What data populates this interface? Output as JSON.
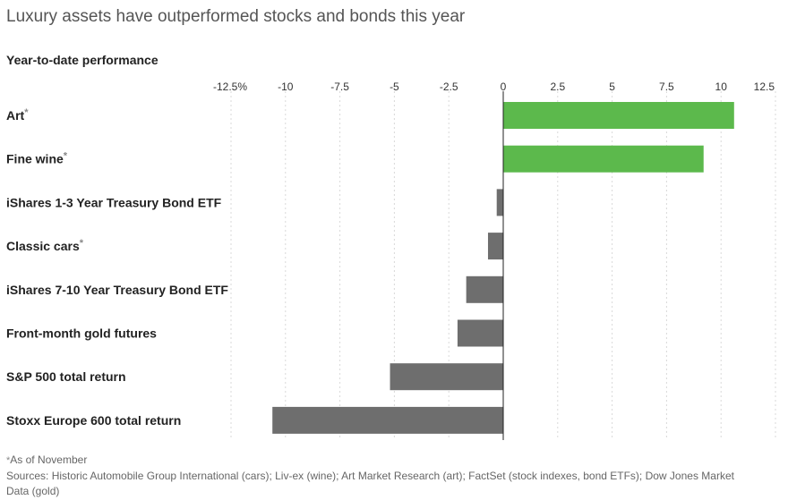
{
  "chart_data": {
    "type": "bar",
    "orientation": "horizontal",
    "title": "Luxury assets have outperformed stocks and bonds this year",
    "subtitle": "Year-to-date performance",
    "xlim": [
      -12.5,
      12.5
    ],
    "ticks": [
      -12.5,
      -10,
      -7.5,
      -5,
      -2.5,
      0,
      2.5,
      5,
      7.5,
      10,
      12.5
    ],
    "tick_labels": [
      "-12.5%",
      "-10",
      "-7.5",
      "-5",
      "-2.5",
      "0",
      "2.5",
      "5",
      "7.5",
      "10",
      "12.5"
    ],
    "grid": true,
    "categories": [
      {
        "label": "Art",
        "note": "*",
        "value": 10.6,
        "color": "#5cb94c"
      },
      {
        "label": "Fine wine",
        "note": "*",
        "value": 9.2,
        "color": "#5cb94c"
      },
      {
        "label": "iShares 1-3 Year Treasury Bond ETF",
        "note": "",
        "value": -0.3,
        "color": "#6e6e6e"
      },
      {
        "label": "Classic cars",
        "note": "*",
        "value": -0.7,
        "color": "#6e6e6e"
      },
      {
        "label": "iShares 7-10 Year Treasury Bond ETF",
        "note": "",
        "value": -1.7,
        "color": "#6e6e6e"
      },
      {
        "label": "Front-month gold futures",
        "note": "",
        "value": -2.1,
        "color": "#6e6e6e"
      },
      {
        "label": "S&P 500 total return",
        "note": "",
        "value": -5.2,
        "color": "#6e6e6e"
      },
      {
        "label": "Stoxx Europe 600 total return",
        "note": "",
        "value": -10.6,
        "color": "#6e6e6e"
      }
    ]
  },
  "footnotes": {
    "as_of_marker": "*",
    "as_of": "As of November",
    "sources_line1": "Sources: Historic Automobile Group International (cars); Liv-ex (wine); Art Market Research (art); FactSet (stock indexes, bond ETFs); Dow Jones Market",
    "sources_line2": "Data (gold)"
  }
}
